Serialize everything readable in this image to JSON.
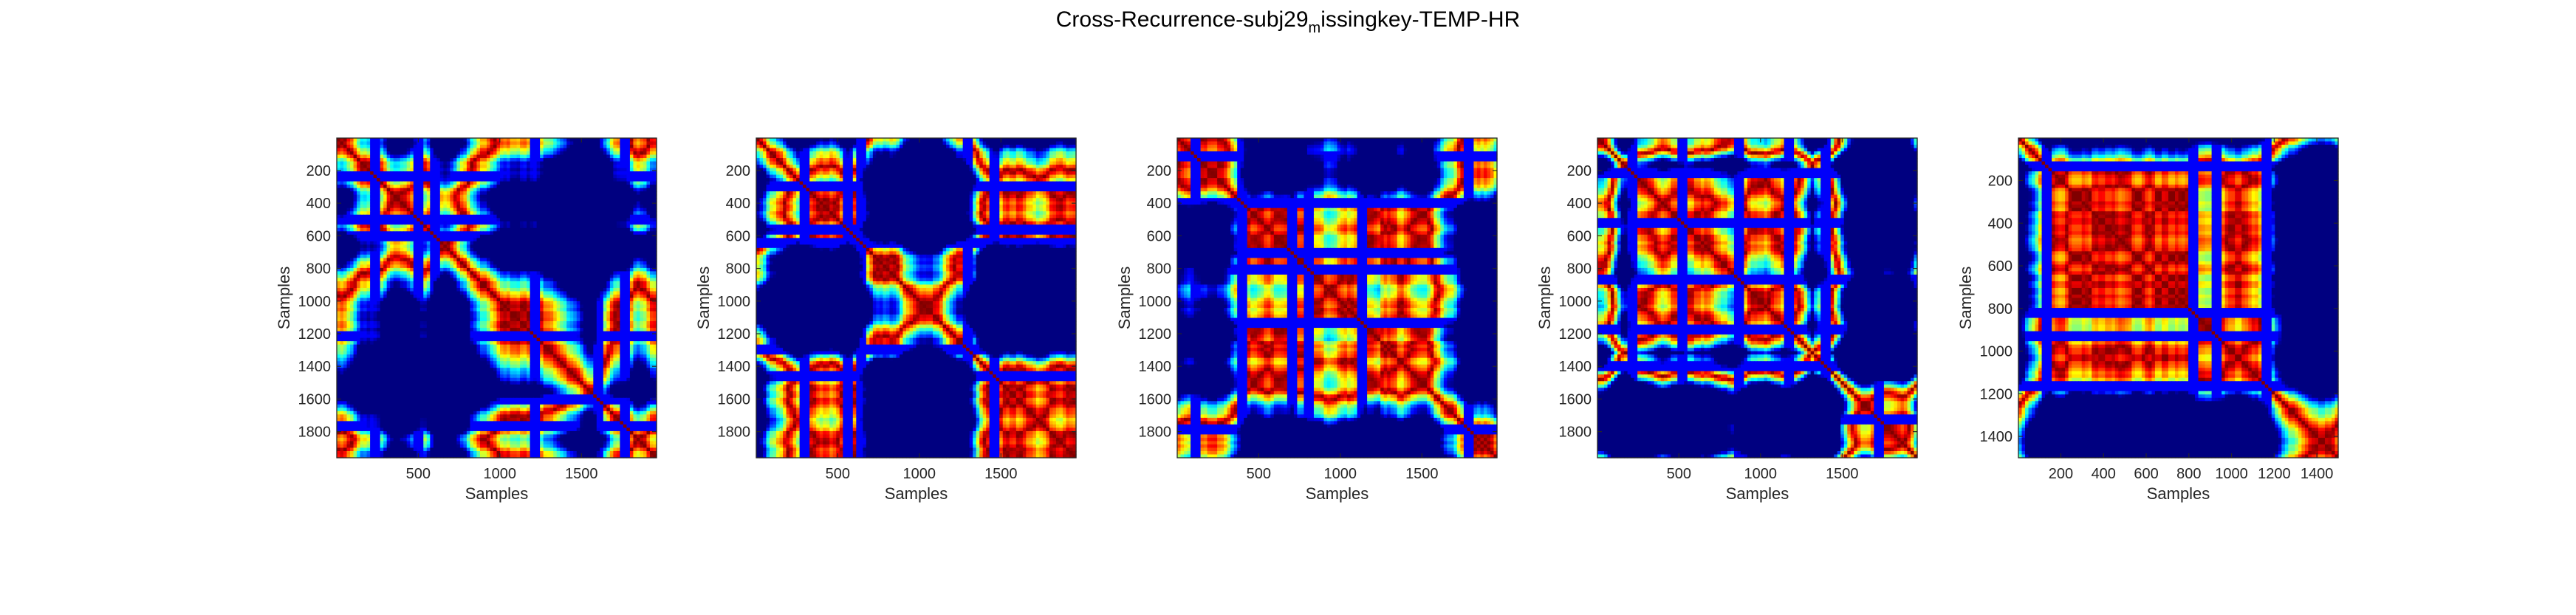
{
  "figure": {
    "title_main": "Cross-Recurrence-subj29",
    "title_sub": "m",
    "title_rest": "issingkey-TEMP-HR"
  },
  "chart_data": [
    {
      "type": "heatmap",
      "xlabel": "Samples",
      "ylabel": "Samples",
      "xlim": [
        1,
        1960
      ],
      "ylim": [
        1,
        1960
      ],
      "y_reversed": true,
      "xticks": [
        500,
        1000,
        1500
      ],
      "yticks": [
        200,
        400,
        600,
        800,
        1000,
        1200,
        1400,
        1600,
        1800
      ],
      "colormap": "jet",
      "grid": false,
      "legend": "none",
      "bands": [
        0.12,
        0.25,
        0.31,
        0.62,
        0.82,
        0.9
      ],
      "seed": 3
    },
    {
      "type": "heatmap",
      "xlabel": "Samples",
      "ylabel": "Samples",
      "xlim": [
        1,
        1960
      ],
      "ylim": [
        1,
        1960
      ],
      "y_reversed": true,
      "xticks": [
        500,
        1000,
        1500
      ],
      "yticks": [
        200,
        400,
        600,
        800,
        1000,
        1200,
        1400,
        1600,
        1800
      ],
      "colormap": "jet",
      "grid": false,
      "legend": "none",
      "bands": [
        0.15,
        0.28,
        0.33,
        0.66,
        0.75
      ],
      "seed": 11
    },
    {
      "type": "heatmap",
      "xlabel": "Samples",
      "ylabel": "Samples",
      "xlim": [
        1,
        1960
      ],
      "ylim": [
        1,
        1960
      ],
      "y_reversed": true,
      "xticks": [
        500,
        1000,
        1500
      ],
      "yticks": [
        200,
        400,
        600,
        800,
        1000,
        1200,
        1400,
        1600,
        1800
      ],
      "colormap": "jet",
      "grid": false,
      "legend": "none",
      "bands": [
        0.05,
        0.2,
        0.36,
        0.41,
        0.58,
        0.92
      ],
      "seed": 23
    },
    {
      "type": "heatmap",
      "xlabel": "Samples",
      "ylabel": "Samples",
      "xlim": [
        1,
        1960
      ],
      "ylim": [
        1,
        1960
      ],
      "y_reversed": true,
      "xticks": [
        500,
        1000,
        1500
      ],
      "yticks": [
        200,
        400,
        600,
        800,
        1000,
        1200,
        1400,
        1600,
        1800
      ],
      "colormap": "jet",
      "grid": false,
      "legend": "none",
      "bands": [
        0.1,
        0.26,
        0.44,
        0.6,
        0.72,
        0.88
      ],
      "seed": 37
    },
    {
      "type": "heatmap",
      "xlabel": "Samples",
      "ylabel": "Samples",
      "xlim": [
        1,
        1500
      ],
      "ylim": [
        1,
        1500
      ],
      "y_reversed": true,
      "xticks": [
        200,
        400,
        600,
        800,
        1000,
        1200,
        1400
      ],
      "yticks": [
        200,
        400,
        600,
        800,
        1000,
        1200,
        1400
      ],
      "colormap": "jet",
      "grid": false,
      "legend": "none",
      "bands": [
        0.08,
        0.55,
        0.62,
        0.78
      ],
      "seed": 53
    }
  ]
}
